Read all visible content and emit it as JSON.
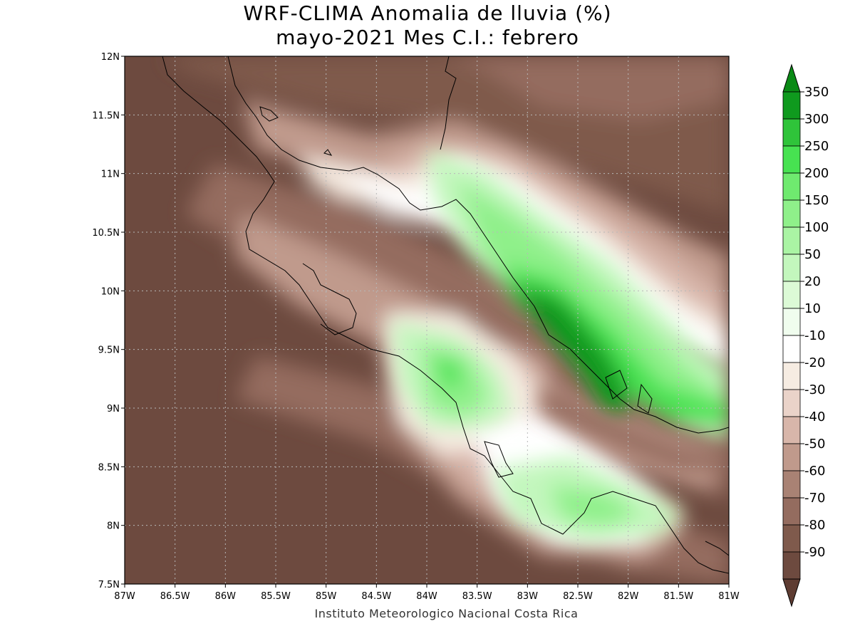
{
  "title_line1": "WRF-CLIMA Anomalia de lluvia (%)",
  "title_line2": "mayo-2021 Mes C.I.: febrero",
  "credit": "Instituto Meteorologico Nacional Costa Rica",
  "map": {
    "lon_range": [
      -87,
      -81
    ],
    "lat_range": [
      7.5,
      12
    ],
    "x_ticks": [
      {
        "value": -87,
        "label": "87W"
      },
      {
        "value": -86.5,
        "label": "86.5W"
      },
      {
        "value": -86,
        "label": "86W"
      },
      {
        "value": -85.5,
        "label": "85.5W"
      },
      {
        "value": -85,
        "label": "85W"
      },
      {
        "value": -84.5,
        "label": "84.5W"
      },
      {
        "value": -84,
        "label": "84W"
      },
      {
        "value": -83.5,
        "label": "83.5W"
      },
      {
        "value": -83,
        "label": "83W"
      },
      {
        "value": -82.5,
        "label": "82.5W"
      },
      {
        "value": -82,
        "label": "82W"
      },
      {
        "value": -81.5,
        "label": "81.5W"
      },
      {
        "value": -81,
        "label": "81W"
      }
    ],
    "y_ticks": [
      {
        "value": 7.5,
        "label": "7.5N"
      },
      {
        "value": 8,
        "label": "8N"
      },
      {
        "value": 8.5,
        "label": "8.5N"
      },
      {
        "value": 9,
        "label": "9N"
      },
      {
        "value": 9.5,
        "label": "9.5N"
      },
      {
        "value": 10,
        "label": "10N"
      },
      {
        "value": 10.5,
        "label": "10.5N"
      },
      {
        "value": 11,
        "label": "11N"
      },
      {
        "value": 11.5,
        "label": "11.5N"
      },
      {
        "value": 12,
        "label": "12N"
      }
    ],
    "grid": "dotted"
  },
  "colorbar": {
    "levels": [
      {
        "label": "350",
        "color": "#0f9a1e"
      },
      {
        "label": "300",
        "color": "#2fc43a"
      },
      {
        "label": "250",
        "color": "#47e251"
      },
      {
        "label": "200",
        "color": "#6fea6f"
      },
      {
        "label": "150",
        "color": "#8ff08a"
      },
      {
        "label": "100",
        "color": "#aaf4a4"
      },
      {
        "label": "50",
        "color": "#c3f7bd"
      },
      {
        "label": "20",
        "color": "#dcfad6"
      },
      {
        "label": "10",
        "color": "#f0fdee"
      },
      {
        "label": "-10",
        "color": "#ffffff"
      },
      {
        "label": "-20",
        "color": "#f6ece2"
      },
      {
        "label": "-30",
        "color": "#ead3c9"
      },
      {
        "label": "-40",
        "color": "#d8b6aa"
      },
      {
        "label": "-50",
        "color": "#c09a8c"
      },
      {
        "label": "-60",
        "color": "#a98274"
      },
      {
        "label": "-70",
        "color": "#946c5f"
      },
      {
        "label": "-80",
        "color": "#7f5a4c"
      },
      {
        "label": "-90",
        "color": "#6d4a3f"
      }
    ],
    "top_color": "#0a8a15",
    "bottom_color": "#5e3c32"
  }
}
